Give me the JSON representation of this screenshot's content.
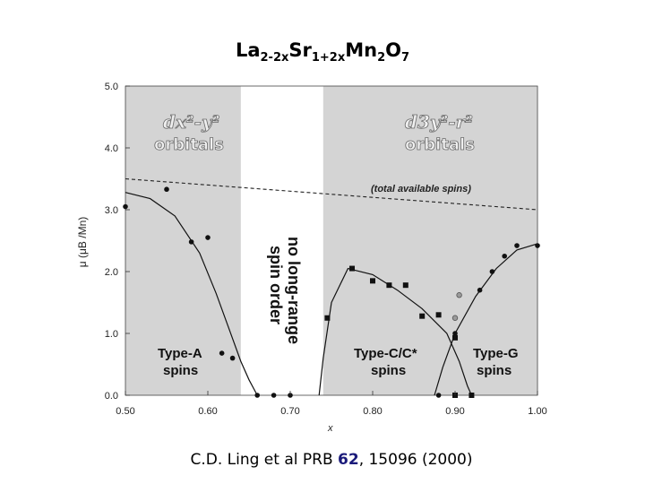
{
  "title": {
    "base1": "La",
    "sub1": "2-2x",
    "base2": "Sr",
    "sub2": "1+2x",
    "base3": "Mn",
    "sub3": "2",
    "base4": "O",
    "sub4": "7"
  },
  "citation": {
    "pre": "C.D. Ling et al  PRB ",
    "volume": "62",
    "post": ", 15096 (2000)"
  },
  "colors": {
    "shaded_region": "#d4d4d4",
    "unshaded_region": "#ffffff",
    "markers": "#111111",
    "open_markers": "#9a9a9a"
  },
  "chart_data": {
    "type": "scatter",
    "xlabel": "x",
    "ylabel": "μ (μB /Mn)",
    "xlim": [
      0.5,
      1.0
    ],
    "ylim": [
      0.0,
      5.0
    ],
    "x_ticks": [
      "0.50",
      "0.60",
      "0.70",
      "0.80",
      "0.90",
      "1.00"
    ],
    "y_ticks": [
      "0.0",
      "1.0",
      "2.0",
      "3.0",
      "4.0",
      "5.0"
    ],
    "grid": false,
    "shaded_regions": [
      [
        0.5,
        0.64
      ],
      [
        0.74,
        1.0
      ]
    ],
    "region_labels": [
      {
        "line1": "Type-A",
        "line2": "spins",
        "x": 0.575,
        "y": 0.55
      },
      {
        "line1": "Type-C/C*",
        "line2": "spins",
        "x": 0.82,
        "y": 0.55
      },
      {
        "line1": "Type-G",
        "line2": "spins",
        "x": 0.952,
        "y": 0.55
      }
    ],
    "orbital_labels": [
      {
        "line1": "dx²-y²",
        "line2": "orbitals",
        "x": 0.575,
        "y": 4.2
      },
      {
        "line1": "d3y²-r²",
        "line2": "orbitals",
        "x": 0.885,
        "y": 4.2
      }
    ],
    "center_label": [
      "no long-range",
      "spin order"
    ],
    "total_spins_label": "(total available spins)",
    "total_spins_line": {
      "x": [
        0.5,
        1.0
      ],
      "y": [
        3.5,
        3.0
      ]
    },
    "series": [
      {
        "marker": "circle",
        "points": [
          {
            "x": 0.5,
            "y": 3.05
          },
          {
            "x": 0.55,
            "y": 3.33
          },
          {
            "x": 0.58,
            "y": 2.48
          },
          {
            "x": 0.6,
            "y": 2.55
          },
          {
            "x": 0.617,
            "y": 0.68
          },
          {
            "x": 0.63,
            "y": 0.6
          },
          {
            "x": 0.66,
            "y": 0.0
          },
          {
            "x": 0.68,
            "y": 0.0
          },
          {
            "x": 0.7,
            "y": 0.0
          },
          {
            "x": 0.88,
            "y": 0.0
          },
          {
            "x": 0.9,
            "y": 1.0
          },
          {
            "x": 0.93,
            "y": 1.7
          },
          {
            "x": 0.945,
            "y": 2.0
          },
          {
            "x": 0.96,
            "y": 2.25
          },
          {
            "x": 0.975,
            "y": 2.42
          },
          {
            "x": 1.0,
            "y": 2.42
          }
        ]
      },
      {
        "marker": "square",
        "points": [
          {
            "x": 0.745,
            "y": 1.25
          },
          {
            "x": 0.775,
            "y": 2.05
          },
          {
            "x": 0.8,
            "y": 1.85
          },
          {
            "x": 0.82,
            "y": 1.78
          },
          {
            "x": 0.84,
            "y": 1.78
          },
          {
            "x": 0.86,
            "y": 1.28
          },
          {
            "x": 0.88,
            "y": 1.3
          },
          {
            "x": 0.9,
            "y": 0.93
          },
          {
            "x": 0.92,
            "y": 0.0
          },
          {
            "x": 0.9,
            "y": 0.0
          }
        ]
      },
      {
        "marker": "open-circle",
        "points": [
          {
            "x": 0.9,
            "y": 1.25
          },
          {
            "x": 0.905,
            "y": 1.62
          }
        ]
      }
    ],
    "curves": [
      {
        "name": "Type-A fit",
        "x": [
          0.5,
          0.53,
          0.56,
          0.59,
          0.61,
          0.625,
          0.64,
          0.65,
          0.658,
          0.66
        ],
        "y": [
          3.28,
          3.18,
          2.9,
          2.3,
          1.65,
          1.1,
          0.55,
          0.25,
          0.05,
          0.0
        ]
      },
      {
        "name": "Type-C fit",
        "x": [
          0.735,
          0.74,
          0.75,
          0.77,
          0.8,
          0.83,
          0.86,
          0.89,
          0.905,
          0.915,
          0.92
        ],
        "y": [
          0.0,
          0.6,
          1.5,
          2.05,
          1.95,
          1.7,
          1.4,
          1.0,
          0.55,
          0.15,
          0.0
        ]
      },
      {
        "name": "Type-G fit",
        "x": [
          0.875,
          0.885,
          0.9,
          0.925,
          0.95,
          0.975,
          1.0
        ],
        "y": [
          0.0,
          0.45,
          1.0,
          1.6,
          2.05,
          2.35,
          2.45
        ]
      }
    ]
  }
}
